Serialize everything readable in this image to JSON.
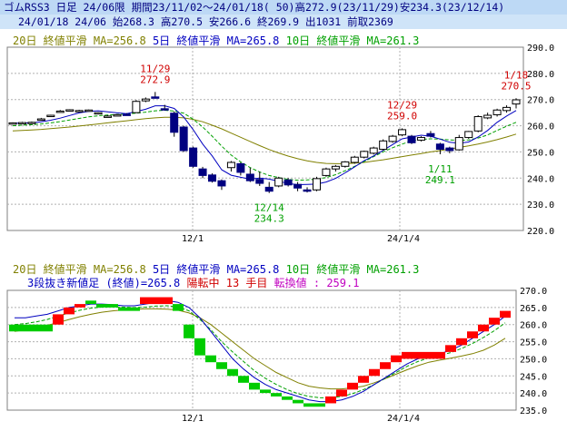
{
  "header": {
    "line1": "ゴムRSS3 日足 24/06限 期間23/11/02～24/01/18( 50)高272.9(23/11/29)安234.3(23/12/14)",
    "line2": "24/01/18 24/06 始268.3 高270.5 安266.6 終269.9 出1031 前取2369"
  },
  "legend": {
    "ma20": "20日 終値平滑 MA=256.8",
    "ma5": "5日 終値平滑 MA=265.8",
    "ma10": "10日 終値平滑 MA=261.3"
  },
  "lower": {
    "reversal_label": "3段抜き新値足 (終値)=265.8",
    "status": "陽転中",
    "count": "13 手目",
    "switch": "転換値 : 259.1"
  },
  "colors": {
    "ma20": "#808000",
    "ma5": "#0000c0",
    "ma10": "#00a000",
    "up_block": "#ff0000",
    "down_block": "#00cc00",
    "annotation_high": "#d00000",
    "annotation_low": "#00a000"
  },
  "chart_data": [
    {
      "type": "candlestick",
      "ylim": [
        220,
        290
      ],
      "y_ticks": [
        "290.0",
        "280.0",
        "270.0",
        "260.0",
        "250.0",
        "240.0",
        "230.0",
        "220.0"
      ],
      "x_ticks": [
        "12/1",
        "24/1/4"
      ],
      "annotations": [
        {
          "date": "11/29",
          "value": "272.9",
          "kind": "high"
        },
        {
          "date": "12/14",
          "value": "234.3",
          "kind": "low"
        },
        {
          "date": "12/29",
          "value": "259.0",
          "kind": "high"
        },
        {
          "date": "1/11",
          "value": "249.1",
          "kind": "low"
        },
        {
          "date": "1/18",
          "value": "270.5",
          "kind": "high"
        }
      ],
      "candles": [
        {
          "o": 261.0,
          "h": 261.3,
          "l": 260.8,
          "c": 261.1
        },
        {
          "o": 261.2,
          "h": 261.5,
          "l": 260.9,
          "c": 261.2
        },
        {
          "o": 261.0,
          "h": 261.6,
          "l": 260.7,
          "c": 261.3
        },
        {
          "o": 262.5,
          "h": 263.0,
          "l": 262.2,
          "c": 262.6
        },
        {
          "o": 263.8,
          "h": 264.2,
          "l": 263.5,
          "c": 264.0
        },
        {
          "o": 265.5,
          "h": 266.0,
          "l": 265.1,
          "c": 265.6
        },
        {
          "o": 266.0,
          "h": 266.3,
          "l": 265.7,
          "c": 266.1
        },
        {
          "o": 265.6,
          "h": 266.1,
          "l": 265.2,
          "c": 265.8
        },
        {
          "o": 265.9,
          "h": 266.2,
          "l": 265.6,
          "c": 266.0
        },
        {
          "o": 264.8,
          "h": 265.2,
          "l": 264.4,
          "c": 265.0
        },
        {
          "o": 263.6,
          "h": 264.0,
          "l": 263.3,
          "c": 263.7
        },
        {
          "o": 264.0,
          "h": 264.5,
          "l": 263.7,
          "c": 264.2
        },
        {
          "o": 264.4,
          "h": 264.8,
          "l": 264.0,
          "c": 264.3
        },
        {
          "o": 265.0,
          "h": 269.8,
          "l": 264.8,
          "c": 269.3
        },
        {
          "o": 269.5,
          "h": 270.8,
          "l": 269.0,
          "c": 270.2
        },
        {
          "o": 271.0,
          "h": 272.9,
          "l": 270.5,
          "c": 270.8
        },
        {
          "o": 266.5,
          "h": 268.0,
          "l": 265.8,
          "c": 266.4
        },
        {
          "o": 264.8,
          "h": 265.5,
          "l": 255.8,
          "c": 257.5
        },
        {
          "o": 259.5,
          "h": 260.0,
          "l": 250.0,
          "c": 250.5
        },
        {
          "o": 251.5,
          "h": 252.0,
          "l": 244.0,
          "c": 244.5
        },
        {
          "o": 243.5,
          "h": 244.3,
          "l": 240.0,
          "c": 241.0
        },
        {
          "o": 241.2,
          "h": 241.8,
          "l": 238.3,
          "c": 238.8
        },
        {
          "o": 239.0,
          "h": 239.5,
          "l": 235.5,
          "c": 237.0
        },
        {
          "o": 244.0,
          "h": 246.5,
          "l": 242.5,
          "c": 246.0
        },
        {
          "o": 245.5,
          "h": 246.0,
          "l": 241.0,
          "c": 242.2
        },
        {
          "o": 241.5,
          "h": 244.0,
          "l": 238.5,
          "c": 239.0
        },
        {
          "o": 239.5,
          "h": 242.5,
          "l": 237.0,
          "c": 238.0
        },
        {
          "o": 236.5,
          "h": 238.5,
          "l": 234.3,
          "c": 235.0
        },
        {
          "o": 237.0,
          "h": 240.5,
          "l": 236.5,
          "c": 240.0
        },
        {
          "o": 239.3,
          "h": 240.0,
          "l": 236.8,
          "c": 237.4
        },
        {
          "o": 237.6,
          "h": 238.5,
          "l": 235.0,
          "c": 236.2
        },
        {
          "o": 235.5,
          "h": 236.5,
          "l": 234.5,
          "c": 235.3
        },
        {
          "o": 235.5,
          "h": 240.5,
          "l": 235.0,
          "c": 239.8
        },
        {
          "o": 241.0,
          "h": 244.0,
          "l": 240.5,
          "c": 243.5
        },
        {
          "o": 243.5,
          "h": 245.0,
          "l": 242.5,
          "c": 244.5
        },
        {
          "o": 244.5,
          "h": 246.5,
          "l": 244.0,
          "c": 246.2
        },
        {
          "o": 246.0,
          "h": 248.5,
          "l": 245.5,
          "c": 248.0
        },
        {
          "o": 248.0,
          "h": 250.5,
          "l": 247.5,
          "c": 250.2
        },
        {
          "o": 249.5,
          "h": 252.0,
          "l": 249.0,
          "c": 251.5
        },
        {
          "o": 251.0,
          "h": 254.8,
          "l": 250.5,
          "c": 254.2
        },
        {
          "o": 254.0,
          "h": 256.5,
          "l": 253.5,
          "c": 256.0
        },
        {
          "o": 256.5,
          "h": 259.0,
          "l": 256.0,
          "c": 258.5
        },
        {
          "o": 256.0,
          "h": 256.5,
          "l": 253.0,
          "c": 253.5
        },
        {
          "o": 254.5,
          "h": 256.0,
          "l": 254.0,
          "c": 255.5
        },
        {
          "o": 257.0,
          "h": 258.0,
          "l": 255.5,
          "c": 256.0
        },
        {
          "o": 253.0,
          "h": 253.5,
          "l": 249.1,
          "c": 251.0
        },
        {
          "o": 251.5,
          "h": 252.0,
          "l": 249.5,
          "c": 250.5
        },
        {
          "o": 250.8,
          "h": 256.5,
          "l": 250.5,
          "c": 255.5
        },
        {
          "o": 255.5,
          "h": 258.0,
          "l": 255.0,
          "c": 257.8
        },
        {
          "o": 258.0,
          "h": 264.0,
          "l": 257.5,
          "c": 263.5
        },
        {
          "o": 263.0,
          "h": 265.0,
          "l": 262.5,
          "c": 264.0
        },
        {
          "o": 264.2,
          "h": 266.5,
          "l": 263.5,
          "c": 266.0
        },
        {
          "o": 265.8,
          "h": 267.8,
          "l": 265.0,
          "c": 267.0
        },
        {
          "o": 268.3,
          "h": 270.5,
          "l": 266.6,
          "c": 269.9
        }
      ],
      "ma5": [
        261,
        261,
        261.1,
        261.5,
        262.1,
        262.9,
        263.9,
        264.9,
        265.5,
        265.7,
        265.3,
        264.9,
        264.6,
        265.4,
        266.3,
        267.6,
        267.6,
        266.6,
        263.3,
        258.5,
        253.0,
        248.5,
        243.2,
        241.1,
        240.3,
        239.6,
        240.0,
        239.6,
        238.8,
        237.9,
        237.5,
        237.6,
        237.7,
        238.5,
        239.9,
        242.0,
        244.3,
        246.7,
        248.5,
        250.6,
        252.8,
        255.0,
        255.7,
        256.4,
        256.0,
        254.9,
        253.7,
        253.3,
        253.8,
        255.7,
        258.2,
        261.3,
        263.7,
        265.8
      ],
      "ma10": [
        260.0,
        260.2,
        260.4,
        260.7,
        261.1,
        261.6,
        262.2,
        262.8,
        263.4,
        263.8,
        264.1,
        264.3,
        264.5,
        264.8,
        265.2,
        265.7,
        265.9,
        265.6,
        264.8,
        262.5,
        259.5,
        256.0,
        252.2,
        248.8,
        246.2,
        244.0,
        242.3,
        241.0,
        240.2,
        239.5,
        239.2,
        239.3,
        239.6,
        240.2,
        241.3,
        242.8,
        244.5,
        246.3,
        248.2,
        250.0,
        251.6,
        253.0,
        254.2,
        254.8,
        255.0,
        254.9,
        254.6,
        254.4,
        254.6,
        255.3,
        256.5,
        258.2,
        259.8,
        261.3
      ],
      "ma20": [
        258.0,
        258.2,
        258.4,
        258.6,
        258.9,
        259.2,
        259.5,
        259.9,
        260.3,
        260.7,
        261.1,
        261.5,
        261.9,
        262.3,
        262.7,
        263.0,
        263.2,
        263.2,
        263.0,
        262.4,
        261.5,
        260.2,
        258.8,
        257.2,
        255.6,
        254.0,
        252.4,
        250.9,
        249.6,
        248.4,
        247.4,
        246.6,
        246.0,
        245.6,
        245.5,
        245.5,
        245.7,
        246.0,
        246.5,
        247.0,
        247.6,
        248.2,
        248.8,
        249.4,
        250.0,
        250.5,
        251.1,
        251.7,
        252.3,
        253.0,
        253.8,
        254.7,
        255.7,
        256.8
      ]
    },
    {
      "type": "renko",
      "ylim": [
        235,
        270
      ],
      "y_ticks": [
        "270.0",
        "265.0",
        "260.0",
        "255.0",
        "250.0",
        "245.0",
        "240.0",
        "235.0"
      ],
      "x_ticks": [
        "12/1",
        "24/1/4"
      ],
      "blocks": [
        {
          "i": 0,
          "lo": 258,
          "hi": 260,
          "dir": "down"
        },
        {
          "i": 1,
          "lo": 258,
          "hi": 260,
          "dir": "down"
        },
        {
          "i": 2,
          "lo": 258,
          "hi": 260,
          "dir": "down"
        },
        {
          "i": 3,
          "lo": 258,
          "hi": 260,
          "dir": "down"
        },
        {
          "i": 4,
          "lo": 260,
          "hi": 263,
          "dir": "up"
        },
        {
          "i": 5,
          "lo": 263,
          "hi": 265,
          "dir": "up"
        },
        {
          "i": 6,
          "lo": 265,
          "hi": 266,
          "dir": "up"
        },
        {
          "i": 7,
          "lo": 266,
          "hi": 267,
          "dir": "down"
        },
        {
          "i": 8,
          "lo": 265,
          "hi": 266,
          "dir": "down"
        },
        {
          "i": 9,
          "lo": 265,
          "hi": 266,
          "dir": "down"
        },
        {
          "i": 10,
          "lo": 264,
          "hi": 265,
          "dir": "down"
        },
        {
          "i": 11,
          "lo": 264,
          "hi": 265,
          "dir": "down"
        },
        {
          "i": 12,
          "lo": 266,
          "hi": 268,
          "dir": "up"
        },
        {
          "i": 13,
          "lo": 266,
          "hi": 268,
          "dir": "up"
        },
        {
          "i": 14,
          "lo": 266,
          "hi": 268,
          "dir": "up"
        },
        {
          "i": 15,
          "lo": 264,
          "hi": 266,
          "dir": "down"
        },
        {
          "i": 16,
          "lo": 256,
          "hi": 260,
          "dir": "down"
        },
        {
          "i": 17,
          "lo": 251,
          "hi": 256,
          "dir": "down"
        },
        {
          "i": 18,
          "lo": 249,
          "hi": 251,
          "dir": "down"
        },
        {
          "i": 19,
          "lo": 247,
          "hi": 249,
          "dir": "down"
        },
        {
          "i": 20,
          "lo": 245,
          "hi": 247,
          "dir": "down"
        },
        {
          "i": 21,
          "lo": 243,
          "hi": 245,
          "dir": "down"
        },
        {
          "i": 22,
          "lo": 241,
          "hi": 243,
          "dir": "down"
        },
        {
          "i": 23,
          "lo": 240,
          "hi": 241,
          "dir": "down"
        },
        {
          "i": 24,
          "lo": 239,
          "hi": 240,
          "dir": "down"
        },
        {
          "i": 25,
          "lo": 238,
          "hi": 239,
          "dir": "down"
        },
        {
          "i": 26,
          "lo": 237,
          "hi": 238,
          "dir": "down"
        },
        {
          "i": 27,
          "lo": 236,
          "hi": 237,
          "dir": "down"
        },
        {
          "i": 28,
          "lo": 236,
          "hi": 237,
          "dir": "down"
        },
        {
          "i": 29,
          "lo": 237,
          "hi": 239,
          "dir": "up"
        },
        {
          "i": 30,
          "lo": 239,
          "hi": 241,
          "dir": "up"
        },
        {
          "i": 31,
          "lo": 241,
          "hi": 243,
          "dir": "up"
        },
        {
          "i": 32,
          "lo": 243,
          "hi": 245,
          "dir": "up"
        },
        {
          "i": 33,
          "lo": 245,
          "hi": 247,
          "dir": "up"
        },
        {
          "i": 34,
          "lo": 247,
          "hi": 249,
          "dir": "up"
        },
        {
          "i": 35,
          "lo": 249,
          "hi": 251,
          "dir": "up"
        },
        {
          "i": 36,
          "lo": 250,
          "hi": 252,
          "dir": "up"
        },
        {
          "i": 37,
          "lo": 250,
          "hi": 252,
          "dir": "up"
        },
        {
          "i": 38,
          "lo": 250,
          "hi": 252,
          "dir": "up"
        },
        {
          "i": 39,
          "lo": 250,
          "hi": 252,
          "dir": "up"
        },
        {
          "i": 40,
          "lo": 252,
          "hi": 254,
          "dir": "up"
        },
        {
          "i": 41,
          "lo": 254,
          "hi": 256,
          "dir": "up"
        },
        {
          "i": 42,
          "lo": 256,
          "hi": 258,
          "dir": "up"
        },
        {
          "i": 43,
          "lo": 258,
          "hi": 260,
          "dir": "up"
        },
        {
          "i": 44,
          "lo": 260,
          "hi": 262,
          "dir": "up"
        },
        {
          "i": 45,
          "lo": 262,
          "hi": 264,
          "dir": "up"
        }
      ],
      "lines": {
        "main": [
          262,
          262,
          262.5,
          263,
          264,
          265,
          265.5,
          266,
          266,
          265.8,
          265.5,
          265.5,
          266,
          266.5,
          267,
          266.5,
          265,
          262,
          258,
          254,
          250,
          247,
          244.5,
          242.5,
          241,
          240,
          239,
          238,
          237.5,
          237.5,
          238,
          239,
          240.5,
          242.5,
          244.5,
          246.5,
          248.5,
          250,
          251,
          251.5,
          252.5,
          254,
          256,
          258,
          260,
          262.5
        ],
        "ma20": [
          258,
          258.5,
          259,
          259.8,
          260.6,
          261.5,
          262.3,
          263,
          263.6,
          264,
          264.3,
          264.5,
          264.6,
          264.6,
          264.5,
          264.2,
          263.4,
          262,
          260,
          257.5,
          255,
          252.5,
          250,
          248,
          246,
          244.5,
          243,
          242,
          241.5,
          241.2,
          241.2,
          241.5,
          242,
          243,
          244.2,
          245.5,
          246.8,
          248,
          249,
          249.6,
          250.2,
          250.8,
          251.5,
          252.5,
          254,
          256
        ],
        "ma10": [
          260,
          260.3,
          260.8,
          261.5,
          262.5,
          263.4,
          264.2,
          264.8,
          265.1,
          265.2,
          265.1,
          265,
          265.1,
          265.4,
          265.5,
          265.2,
          264,
          261.5,
          258.5,
          255,
          252,
          249.2,
          246.5,
          244.3,
          242.5,
          241,
          239.8,
          239,
          238.6,
          238.6,
          239,
          239.8,
          241,
          242.5,
          244.3,
          246,
          247.8,
          249.2,
          250.3,
          251,
          251.8,
          253,
          254.5,
          256.2,
          258.2,
          260.5
        ]
      }
    }
  ]
}
